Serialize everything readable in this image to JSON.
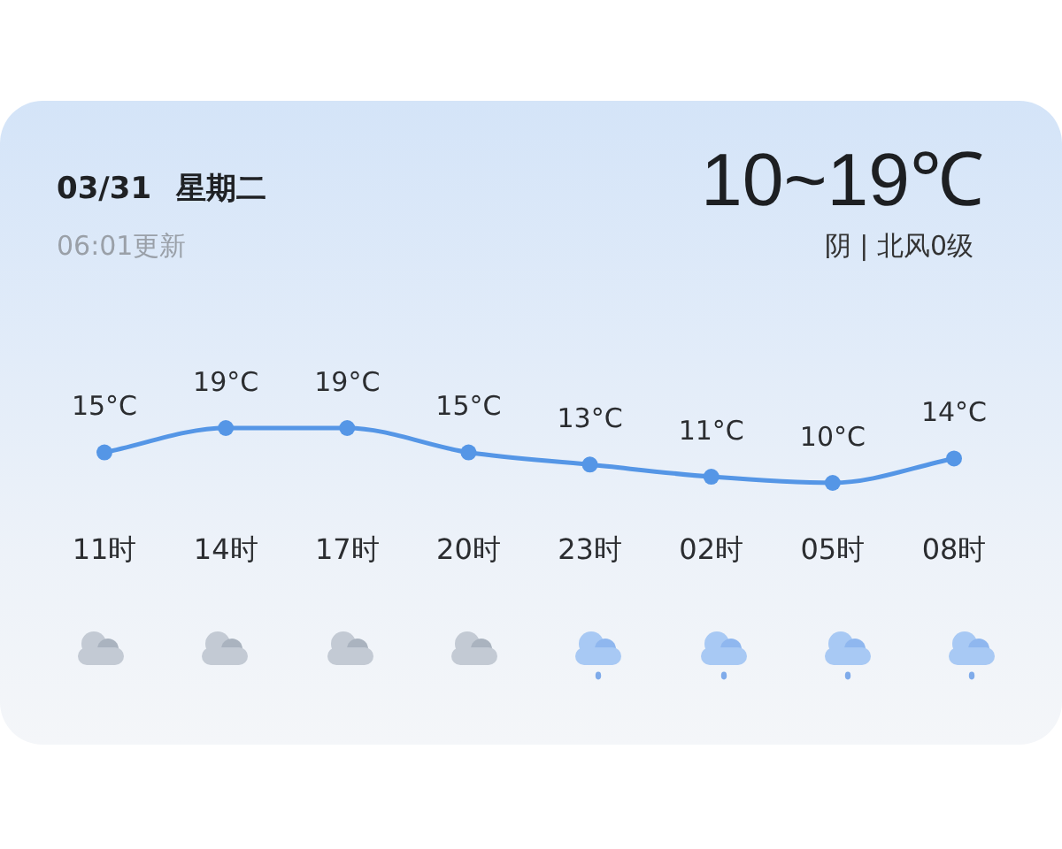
{
  "chart_data": {
    "type": "line",
    "title": "03/31 星期二",
    "subtitle": "06:01更新",
    "annotations": [
      "10~19℃",
      "阴 | 北风0级"
    ],
    "categories": [
      "11时",
      "14时",
      "17时",
      "20时",
      "23时",
      "02时",
      "05时",
      "08时"
    ],
    "values": [
      15,
      19,
      19,
      15,
      13,
      11,
      10,
      14
    ],
    "value_labels": [
      "15°C",
      "19°C",
      "19°C",
      "15°C",
      "13°C",
      "11°C",
      "10°C",
      "14°C"
    ],
    "color": "#5596e6",
    "marker": "circle",
    "line_style": "solid",
    "grid": false,
    "legend": false,
    "tick_labels": "x"
  }
}
